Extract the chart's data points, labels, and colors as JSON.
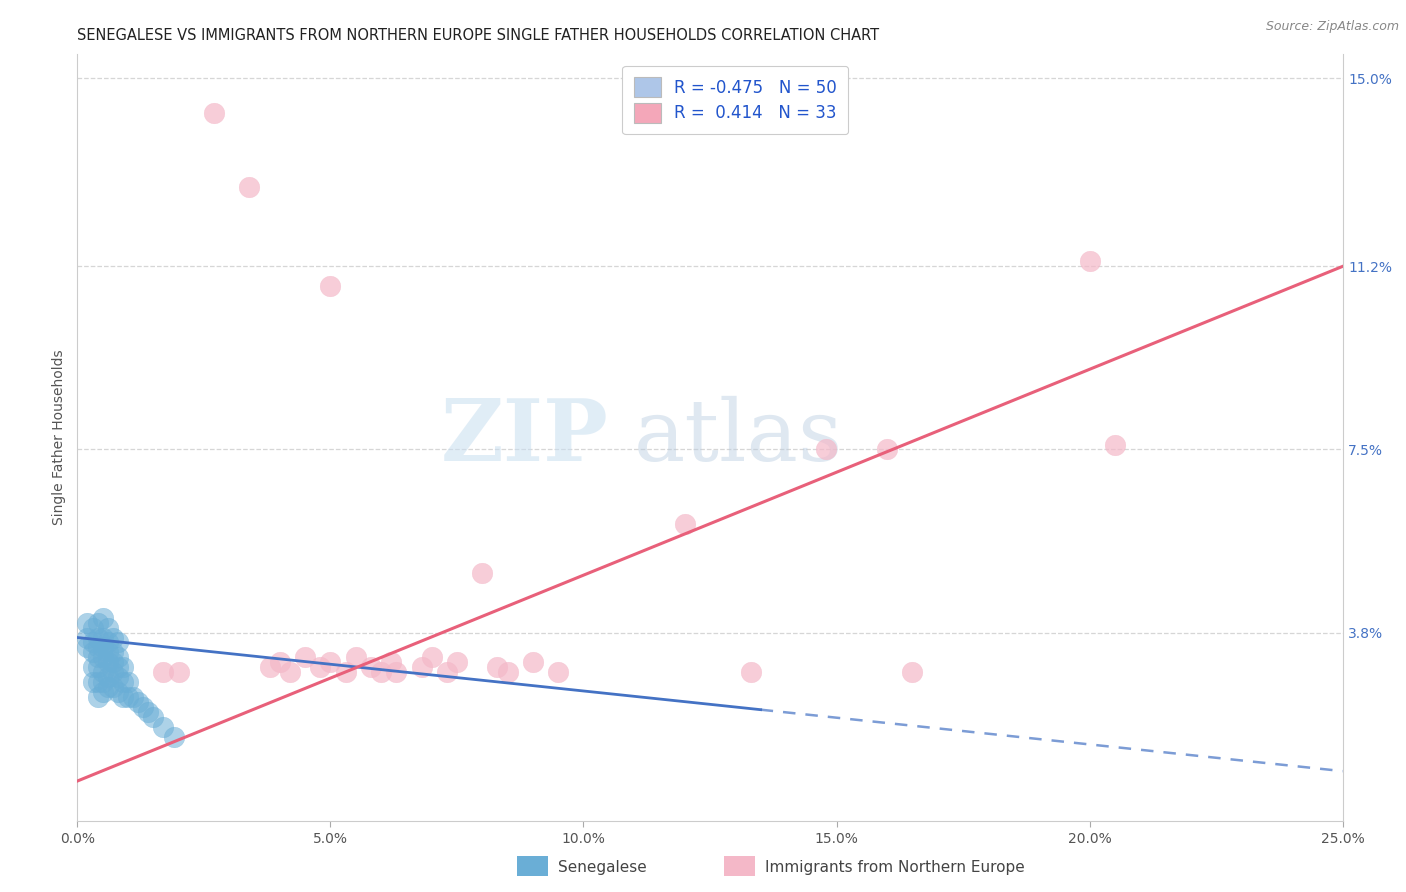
{
  "title": "SENEGALESE VS IMMIGRANTS FROM NORTHERN EUROPE SINGLE FATHER HOUSEHOLDS CORRELATION CHART",
  "source": "Source: ZipAtlas.com",
  "ylabel": "Single Father Households",
  "xlim": [
    0.0,
    0.25
  ],
  "ylim": [
    0.0,
    0.155
  ],
  "xtick_labels": [
    "0.0%",
    "5.0%",
    "10.0%",
    "15.0%",
    "20.0%",
    "25.0%"
  ],
  "xtick_values": [
    0.0,
    0.05,
    0.1,
    0.15,
    0.2,
    0.25
  ],
  "ytick_right_labels": [
    "3.8%",
    "7.5%",
    "11.2%",
    "15.0%"
  ],
  "ytick_right_values": [
    0.038,
    0.075,
    0.112,
    0.15
  ],
  "legend_entries": [
    {
      "label": "R = -0.475   N = 50",
      "color": "#aec6e8"
    },
    {
      "label": "R =  0.414   N = 33",
      "color": "#f4a7b9"
    }
  ],
  "watermark_zip": "ZIP",
  "watermark_atlas": "atlas",
  "blue_color": "#6aaed6",
  "pink_color": "#f4b8c8",
  "blue_line_color": "#4472c4",
  "pink_line_color": "#e8607a",
  "blue_scatter": {
    "x": [
      0.002,
      0.002,
      0.002,
      0.003,
      0.003,
      0.003,
      0.003,
      0.003,
      0.004,
      0.004,
      0.004,
      0.004,
      0.004,
      0.004,
      0.004,
      0.005,
      0.005,
      0.005,
      0.005,
      0.005,
      0.005,
      0.005,
      0.006,
      0.006,
      0.006,
      0.006,
      0.006,
      0.006,
      0.007,
      0.007,
      0.007,
      0.007,
      0.007,
      0.008,
      0.008,
      0.008,
      0.008,
      0.008,
      0.009,
      0.009,
      0.009,
      0.01,
      0.01,
      0.011,
      0.012,
      0.013,
      0.014,
      0.015,
      0.017,
      0.019
    ],
    "y": [
      0.035,
      0.037,
      0.04,
      0.028,
      0.031,
      0.034,
      0.036,
      0.039,
      0.025,
      0.028,
      0.031,
      0.033,
      0.035,
      0.037,
      0.04,
      0.026,
      0.028,
      0.03,
      0.033,
      0.035,
      0.037,
      0.041,
      0.027,
      0.029,
      0.032,
      0.034,
      0.036,
      0.039,
      0.027,
      0.03,
      0.032,
      0.034,
      0.037,
      0.026,
      0.029,
      0.031,
      0.033,
      0.036,
      0.025,
      0.028,
      0.031,
      0.025,
      0.028,
      0.025,
      0.024,
      0.023,
      0.022,
      0.021,
      0.019,
      0.017
    ]
  },
  "pink_scatter": {
    "x": [
      0.017,
      0.02,
      0.027,
      0.034,
      0.038,
      0.04,
      0.042,
      0.045,
      0.048,
      0.05,
      0.05,
      0.053,
      0.055,
      0.058,
      0.06,
      0.062,
      0.063,
      0.068,
      0.07,
      0.073,
      0.075,
      0.08,
      0.083,
      0.085,
      0.09,
      0.095,
      0.12,
      0.133,
      0.148,
      0.16,
      0.165,
      0.2,
      0.205
    ],
    "y": [
      0.03,
      0.03,
      0.143,
      0.128,
      0.031,
      0.032,
      0.03,
      0.033,
      0.031,
      0.108,
      0.032,
      0.03,
      0.033,
      0.031,
      0.03,
      0.032,
      0.03,
      0.031,
      0.033,
      0.03,
      0.032,
      0.05,
      0.031,
      0.03,
      0.032,
      0.03,
      0.06,
      0.03,
      0.075,
      0.075,
      0.03,
      0.113,
      0.076
    ]
  },
  "blue_trend": {
    "x_start": 0.0,
    "x_end": 0.25,
    "y_start": 0.037,
    "y_end": 0.01,
    "solid_end": 0.135
  },
  "pink_trend": {
    "x_start": 0.0,
    "x_end": 0.25,
    "y_start": 0.008,
    "y_end": 0.112
  },
  "grid_color": "#cccccc",
  "bg_color": "#ffffff",
  "title_fontsize": 10.5,
  "axis_label_fontsize": 10,
  "tick_fontsize": 10,
  "legend_fontsize": 12
}
